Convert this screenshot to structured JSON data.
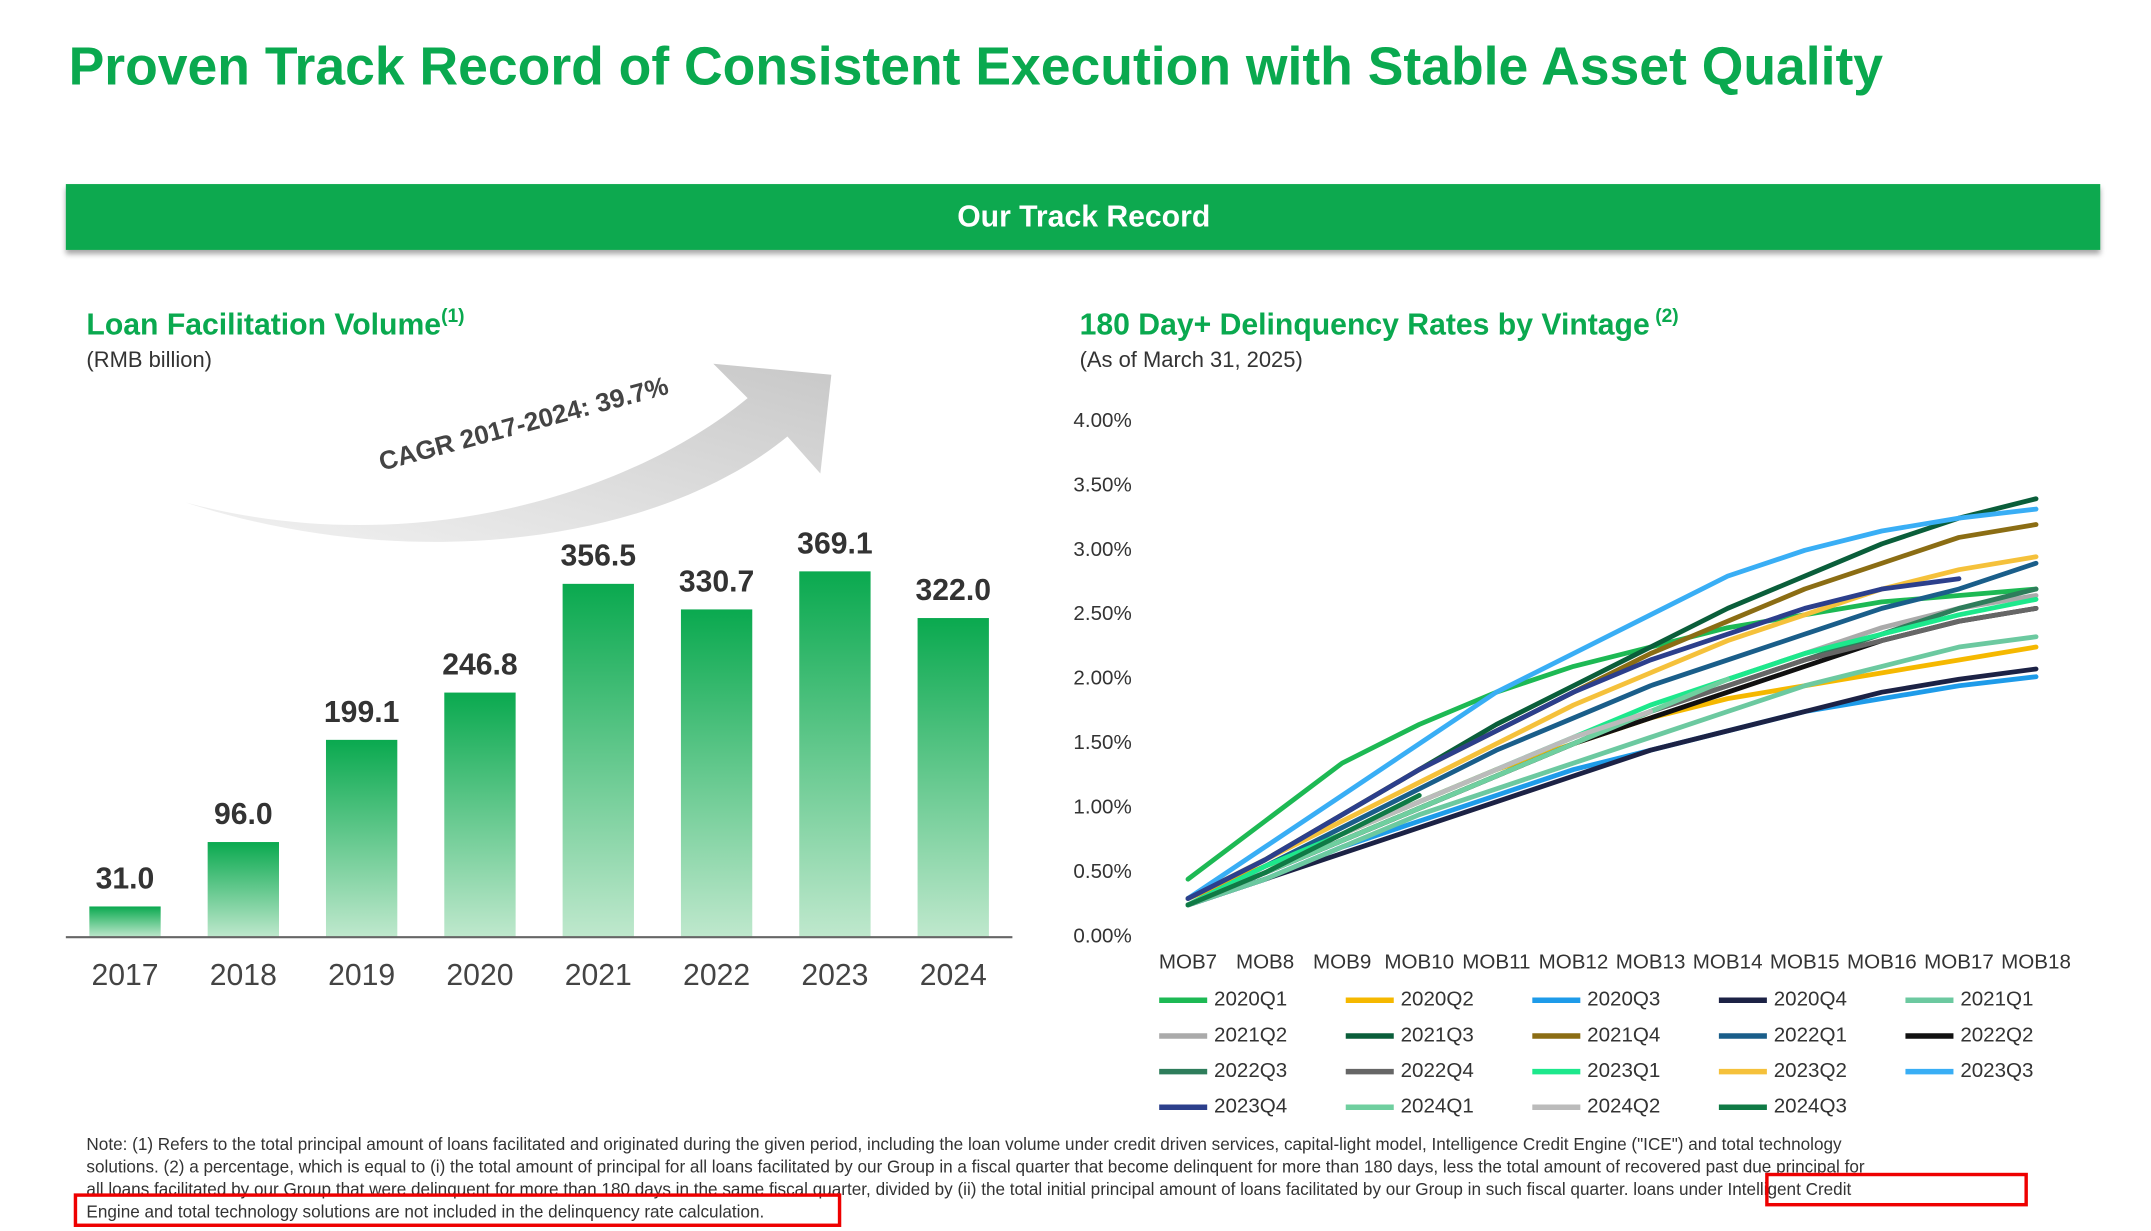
{
  "header": {
    "title": "Proven Track Record of Consistent Execution with Stable Asset Quality"
  },
  "banner": {
    "title": "Our Track Record"
  },
  "note": [
    "Note: (1) Refers to the total principal amount of loans facilitated and originated during the given period, including the loan volume under credit driven services, capital-light model, Intelligence Credit Engine (\"ICE\") and total technology",
    "solutions. (2) a percentage, which is equal to (i) the total amount of principal for all loans facilitated by our Group in a fiscal quarter that become delinquent for more than 180 days, less the total amount of recovered past due principal for",
    "all loans facilitated by our Group that were delinquent for more than 180 days in the same fiscal quarter, divided by (ii) the total initial principal amount of loans facilitated by our Group in such fiscal quarter. loans under Intelligent Credit",
    "Engine and total technology solutions are not included in the delinquency rate calculation."
  ],
  "chart_data": [
    {
      "type": "bar",
      "title": "Loan Facilitation Volume",
      "title_note": "(1)",
      "subtitle": "(RMB billion)",
      "annotation": "CAGR 2017-2024: 39.7%",
      "categories": [
        "2017",
        "2018",
        "2019",
        "2020",
        "2021",
        "2022",
        "2023",
        "2024"
      ],
      "values": [
        31.0,
        96.0,
        199.1,
        246.8,
        356.5,
        330.7,
        369.1,
        322.0
      ],
      "value_labels": [
        "31.0",
        "96.0",
        "199.1",
        "246.8",
        "356.5",
        "330.7",
        "369.1",
        "322.0"
      ],
      "color": "#0aa94f",
      "ylim": [
        0,
        400
      ]
    },
    {
      "type": "line",
      "title": "180 Day+ Delinquency Rates by Vintage",
      "title_note": "(2)",
      "subtitle": "(As of March 31, 2025)",
      "categories": [
        "MOB7",
        "MOB8",
        "MOB9",
        "MOB10",
        "MOB11",
        "MOB12",
        "MOB13",
        "MOB14",
        "MOB15",
        "MOB16",
        "MOB17",
        "MOB18"
      ],
      "ylim": [
        0,
        4
      ],
      "yticks": [
        {
          "value": 0,
          "label": "0.00%"
        },
        {
          "value": 0.5,
          "label": "0.50%"
        },
        {
          "value": 1,
          "label": "1.00%"
        },
        {
          "value": 1.5,
          "label": "1.50%"
        },
        {
          "value": 2,
          "label": "2.00%"
        },
        {
          "value": 2.5,
          "label": "2.50%"
        },
        {
          "value": 3,
          "label": "3.00%"
        },
        {
          "value": 3.5,
          "label": "3.50%"
        },
        {
          "value": 4,
          "label": "4.00%"
        }
      ],
      "series": [
        {
          "name": "2020Q1",
          "color": "#1db954",
          "values": [
            0.45,
            0.9,
            1.35,
            1.65,
            1.9,
            2.1,
            2.25,
            2.4,
            2.5,
            2.6,
            2.65,
            2.7
          ]
        },
        {
          "name": "2020Q2",
          "color": "#f5b800",
          "values": [
            0.3,
            0.55,
            0.8,
            1.05,
            1.3,
            1.5,
            1.7,
            1.85,
            1.95,
            2.05,
            2.15,
            2.25
          ]
        },
        {
          "name": "2020Q3",
          "color": "#1e9be9",
          "values": [
            0.25,
            0.45,
            0.7,
            0.9,
            1.1,
            1.3,
            1.45,
            1.6,
            1.75,
            1.85,
            1.95,
            2.02
          ]
        },
        {
          "name": "2020Q4",
          "color": "#1c2245",
          "values": [
            0.25,
            0.45,
            0.65,
            0.85,
            1.05,
            1.25,
            1.45,
            1.6,
            1.75,
            1.9,
            2.0,
            2.08
          ]
        },
        {
          "name": "2021Q1",
          "color": "#6cc9a0",
          "values": [
            0.25,
            0.45,
            0.7,
            0.95,
            1.15,
            1.35,
            1.55,
            1.75,
            1.95,
            2.1,
            2.25,
            2.33
          ]
        },
        {
          "name": "2021Q2",
          "color": "#aaaaaa",
          "values": [
            0.25,
            0.5,
            0.75,
            1.0,
            1.25,
            1.5,
            1.75,
            2.0,
            2.2,
            2.4,
            2.55,
            2.65
          ]
        },
        {
          "name": "2021Q3",
          "color": "#0a5e3a",
          "values": [
            0.3,
            0.6,
            0.95,
            1.3,
            1.65,
            1.95,
            2.25,
            2.55,
            2.8,
            3.05,
            3.25,
            3.4
          ]
        },
        {
          "name": "2021Q4",
          "color": "#8b6d14",
          "values": [
            0.3,
            0.6,
            0.95,
            1.3,
            1.6,
            1.9,
            2.2,
            2.45,
            2.7,
            2.9,
            3.1,
            3.2
          ]
        },
        {
          "name": "2022Q1",
          "color": "#1a5e8a",
          "values": [
            0.25,
            0.55,
            0.85,
            1.15,
            1.45,
            1.7,
            1.95,
            2.15,
            2.35,
            2.55,
            2.7,
            2.9
          ]
        },
        {
          "name": "2022Q2",
          "color": "#111111",
          "values": [
            0.25,
            0.5,
            0.75,
            1.0,
            1.25,
            1.5,
            1.7,
            1.9,
            2.1,
            2.3,
            2.45,
            2.55
          ]
        },
        {
          "name": "2022Q3",
          "color": "#2e7d5b",
          "values": [
            0.25,
            0.5,
            0.75,
            1.0,
            1.25,
            1.5,
            1.75,
            1.95,
            2.15,
            2.35,
            2.55,
            2.7
          ]
        },
        {
          "name": "2022Q4",
          "color": "#666666",
          "values": [
            0.25,
            0.5,
            0.75,
            1.0,
            1.25,
            1.5,
            1.75,
            1.95,
            2.15,
            2.3,
            2.45,
            2.55
          ]
        },
        {
          "name": "2023Q1",
          "color": "#1de88c",
          "values": [
            0.25,
            0.55,
            0.8,
            1.05,
            1.3,
            1.55,
            1.8,
            2.0,
            2.2,
            2.35,
            2.5,
            2.62
          ]
        },
        {
          "name": "2023Q2",
          "color": "#f5c13b",
          "values": [
            0.3,
            0.6,
            0.9,
            1.2,
            1.5,
            1.8,
            2.05,
            2.3,
            2.5,
            2.7,
            2.85,
            2.95
          ]
        },
        {
          "name": "2023Q3",
          "color": "#39aef5",
          "values": [
            0.3,
            0.7,
            1.1,
            1.5,
            1.9,
            2.2,
            2.5,
            2.8,
            3.0,
            3.15,
            3.25,
            3.32
          ]
        },
        {
          "name": "2023Q4",
          "color": "#2c3f8c",
          "values": [
            0.3,
            0.6,
            0.95,
            1.3,
            1.6,
            1.9,
            2.15,
            2.35,
            2.55,
            2.7,
            2.78,
            null
          ]
        },
        {
          "name": "2024Q1",
          "color": "#6fcf9f",
          "values": [
            0.25,
            0.5,
            0.75,
            1.0,
            1.25,
            1.5,
            1.75,
            2.0,
            null,
            null,
            null,
            null
          ]
        },
        {
          "name": "2024Q2",
          "color": "#bbbbbb",
          "values": [
            0.25,
            0.5,
            0.8,
            1.05,
            1.3,
            1.55,
            1.75,
            null,
            null,
            null,
            null,
            null
          ]
        },
        {
          "name": "2024Q3",
          "color": "#0f7a45",
          "values": [
            0.25,
            0.5,
            0.8,
            1.1,
            null,
            null,
            null,
            null,
            null,
            null,
            null,
            null
          ]
        }
      ]
    }
  ]
}
